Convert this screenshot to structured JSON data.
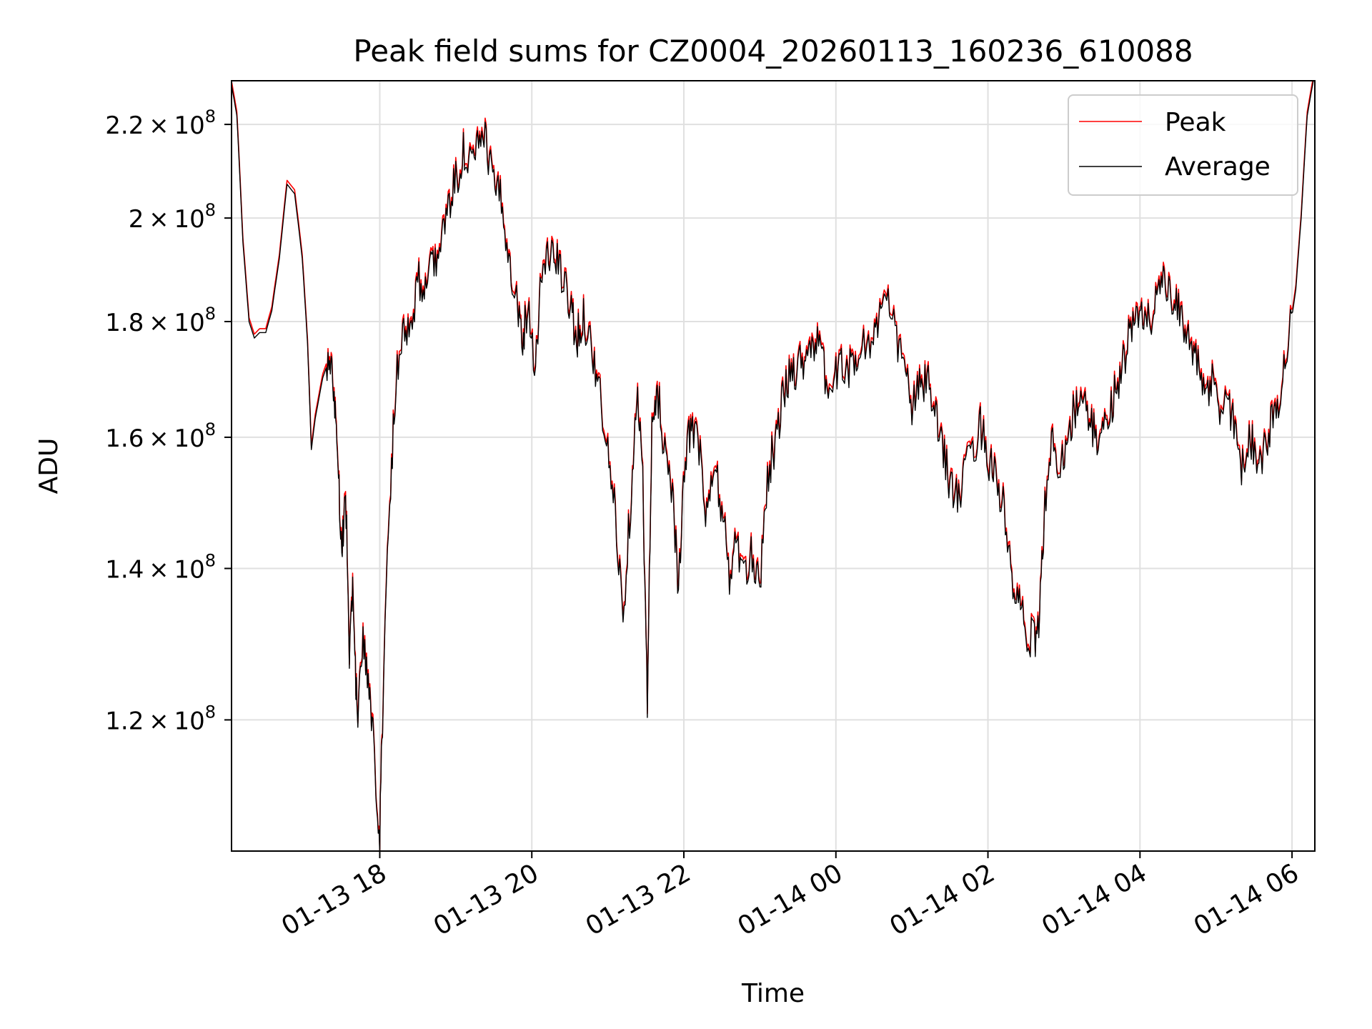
{
  "chart_data": {
    "type": "line",
    "title": "Peak field sums for CZ0004_20260113_160236_610088",
    "xlabel": "Time",
    "ylabel": "ADU",
    "yscale": "log",
    "xlim_hours": [
      16.05,
      30.3
    ],
    "ylim": [
      105000000,
      230000000
    ],
    "grid": true,
    "legend_position": "upper right",
    "x_ticks": [
      {
        "hour": 18,
        "label": "01-13 18"
      },
      {
        "hour": 20,
        "label": "01-13 20"
      },
      {
        "hour": 22,
        "label": "01-13 22"
      },
      {
        "hour": 24,
        "label": "01-14 00"
      },
      {
        "hour": 26,
        "label": "01-14 02"
      },
      {
        "hour": 28,
        "label": "01-14 04"
      },
      {
        "hour": 30,
        "label": "01-14 06"
      }
    ],
    "y_ticks": [
      {
        "value": 120000000,
        "mantissa": "1.2",
        "exp": "8"
      },
      {
        "value": 140000000,
        "mantissa": "1.4",
        "exp": "8"
      },
      {
        "value": 160000000,
        "mantissa": "1.6",
        "exp": "8"
      },
      {
        "value": 180000000,
        "mantissa": "1.8",
        "exp": "8"
      },
      {
        "value": 200000000,
        "mantissa": "2",
        "exp": "8"
      },
      {
        "value": 220000000,
        "mantissa": "2.2",
        "exp": "8"
      }
    ],
    "series": [
      {
        "name": "Peak",
        "color": "#ff0000",
        "offset_factor": 1.004
      },
      {
        "name": "Average",
        "color": "#000000",
        "offset_factor": 1.0
      }
    ],
    "average_points_hours_vs_millions": [
      [
        16.05,
        229
      ],
      [
        16.12,
        222
      ],
      [
        16.2,
        195
      ],
      [
        16.28,
        180
      ],
      [
        16.35,
        177
      ],
      [
        16.42,
        178
      ],
      [
        16.5,
        178
      ],
      [
        16.58,
        182
      ],
      [
        16.68,
        192
      ],
      [
        16.78,
        207
      ],
      [
        16.88,
        205
      ],
      [
        16.98,
        192
      ],
      [
        17.05,
        176
      ],
      [
        17.1,
        158
      ],
      [
        17.15,
        163
      ],
      [
        17.25,
        170
      ],
      [
        17.33,
        173
      ],
      [
        17.4,
        168
      ],
      [
        17.45,
        157
      ],
      [
        17.5,
        142
      ],
      [
        17.55,
        152
      ],
      [
        17.6,
        128
      ],
      [
        17.65,
        138
      ],
      [
        17.7,
        120
      ],
      [
        17.78,
        130
      ],
      [
        17.86,
        124
      ],
      [
        17.93,
        115
      ],
      [
        18.0,
        107
      ],
      [
        18.05,
        125
      ],
      [
        18.12,
        147
      ],
      [
        18.2,
        167
      ],
      [
        18.3,
        180
      ],
      [
        18.4,
        178
      ],
      [
        18.5,
        188
      ],
      [
        18.6,
        187
      ],
      [
        18.7,
        190
      ],
      [
        18.8,
        196
      ],
      [
        18.9,
        201
      ],
      [
        19.0,
        208
      ],
      [
        19.1,
        214
      ],
      [
        19.2,
        211
      ],
      [
        19.3,
        215
      ],
      [
        19.4,
        216
      ],
      [
        19.5,
        207
      ],
      [
        19.6,
        203
      ],
      [
        19.7,
        193
      ],
      [
        19.8,
        184
      ],
      [
        19.88,
        177
      ],
      [
        19.95,
        183
      ],
      [
        20.05,
        172
      ],
      [
        20.12,
        188
      ],
      [
        20.22,
        193
      ],
      [
        20.32,
        192
      ],
      [
        20.42,
        187
      ],
      [
        20.52,
        182
      ],
      [
        20.6,
        177
      ],
      [
        20.68,
        181
      ],
      [
        20.78,
        176
      ],
      [
        20.88,
        168
      ],
      [
        21.0,
        157
      ],
      [
        21.1,
        148
      ],
      [
        21.2,
        133
      ],
      [
        21.3,
        150
      ],
      [
        21.38,
        168
      ],
      [
        21.46,
        153
      ],
      [
        21.52,
        121
      ],
      [
        21.58,
        160
      ],
      [
        21.65,
        168
      ],
      [
        21.75,
        158
      ],
      [
        21.85,
        152
      ],
      [
        21.93,
        137
      ],
      [
        22.02,
        156
      ],
      [
        22.1,
        163
      ],
      [
        22.2,
        158
      ],
      [
        22.3,
        147
      ],
      [
        22.4,
        155
      ],
      [
        22.5,
        149
      ],
      [
        22.6,
        139
      ],
      [
        22.7,
        144
      ],
      [
        22.8,
        138
      ],
      [
        22.9,
        142
      ],
      [
        23.0,
        138
      ],
      [
        23.1,
        154
      ],
      [
        23.2,
        159
      ],
      [
        23.3,
        166
      ],
      [
        23.4,
        171
      ],
      [
        23.5,
        172
      ],
      [
        23.6,
        174
      ],
      [
        23.7,
        177
      ],
      [
        23.8,
        174
      ],
      [
        23.9,
        168
      ],
      [
        24.0,
        170
      ],
      [
        24.1,
        173
      ],
      [
        24.2,
        171
      ],
      [
        24.3,
        175
      ],
      [
        24.45,
        176
      ],
      [
        24.55,
        180
      ],
      [
        24.65,
        184
      ],
      [
        24.78,
        178
      ],
      [
        24.9,
        172
      ],
      [
        25.0,
        165
      ],
      [
        25.1,
        168
      ],
      [
        25.2,
        170
      ],
      [
        25.3,
        163
      ],
      [
        25.4,
        159
      ],
      [
        25.5,
        153
      ],
      [
        25.6,
        150
      ],
      [
        25.7,
        154
      ],
      [
        25.8,
        158
      ],
      [
        25.9,
        162
      ],
      [
        26.0,
        157
      ],
      [
        26.1,
        154
      ],
      [
        26.2,
        149
      ],
      [
        26.3,
        139
      ],
      [
        26.4,
        135
      ],
      [
        26.5,
        131
      ],
      [
        26.6,
        130
      ],
      [
        26.68,
        133
      ],
      [
        26.75,
        150
      ],
      [
        26.85,
        159
      ],
      [
        26.95,
        155
      ],
      [
        27.05,
        161
      ],
      [
        27.15,
        165
      ],
      [
        27.25,
        166
      ],
      [
        27.35,
        162
      ],
      [
        27.45,
        160
      ],
      [
        27.55,
        161
      ],
      [
        27.65,
        167
      ],
      [
        27.75,
        171
      ],
      [
        27.85,
        177
      ],
      [
        27.95,
        180
      ],
      [
        28.05,
        181
      ],
      [
        28.15,
        181
      ],
      [
        28.25,
        187
      ],
      [
        28.35,
        186
      ],
      [
        28.45,
        183
      ],
      [
        28.55,
        180
      ],
      [
        28.65,
        178
      ],
      [
        28.75,
        172
      ],
      [
        28.85,
        166
      ],
      [
        28.95,
        170
      ],
      [
        29.05,
        164
      ],
      [
        29.15,
        167
      ],
      [
        29.25,
        161
      ],
      [
        29.35,
        155
      ],
      [
        29.45,
        160
      ],
      [
        29.55,
        157
      ],
      [
        29.65,
        158
      ],
      [
        29.75,
        163
      ],
      [
        29.85,
        168
      ],
      [
        29.95,
        176
      ],
      [
        30.05,
        186
      ],
      [
        30.12,
        200
      ],
      [
        30.2,
        222
      ],
      [
        30.3,
        232
      ]
    ]
  }
}
